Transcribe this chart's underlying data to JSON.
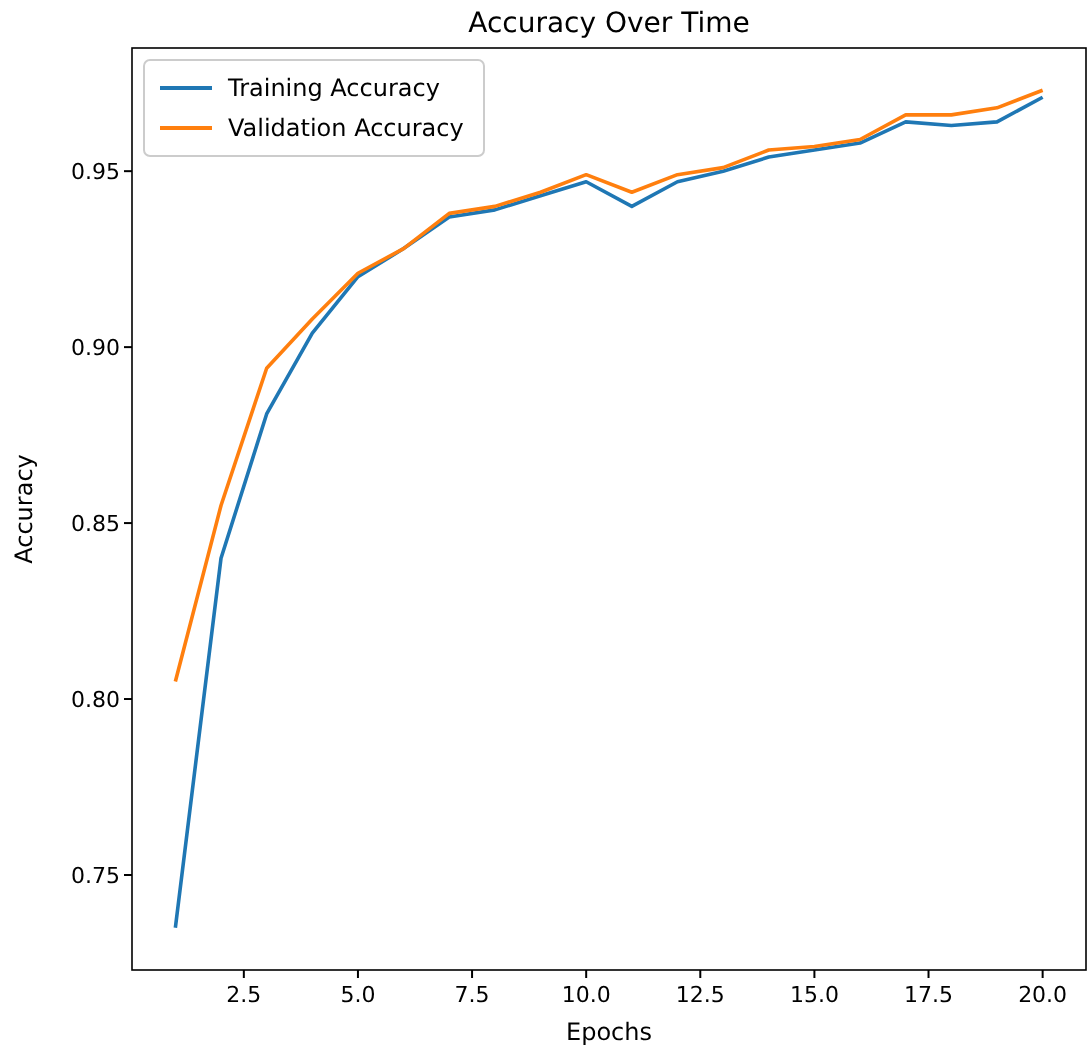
{
  "chart_data": {
    "type": "line",
    "title": "Accuracy Over Time",
    "xlabel": "Epochs",
    "ylabel": "Accuracy",
    "x": [
      1,
      2,
      3,
      4,
      5,
      6,
      7,
      8,
      9,
      10,
      11,
      12,
      13,
      14,
      15,
      16,
      17,
      18,
      19,
      20
    ],
    "series": [
      {
        "name": "Training Accuracy",
        "color": "#1f77b4",
        "values": [
          0.735,
          0.84,
          0.881,
          0.904,
          0.92,
          0.928,
          0.937,
          0.939,
          0.943,
          0.947,
          0.94,
          0.947,
          0.95,
          0.954,
          0.956,
          0.958,
          0.964,
          0.963,
          0.964,
          0.971
        ]
      },
      {
        "name": "Validation Accuracy",
        "color": "#ff7f0e",
        "values": [
          0.805,
          0.855,
          0.894,
          0.908,
          0.921,
          0.928,
          0.938,
          0.94,
          0.944,
          0.949,
          0.944,
          0.949,
          0.951,
          0.956,
          0.957,
          0.959,
          0.966,
          0.966,
          0.968,
          0.973
        ]
      }
    ],
    "xlim": [
      0.05,
      20.95
    ],
    "ylim": [
      0.723,
      0.985
    ],
    "xticks": [
      2.5,
      {
        "value": 5,
        "label": "5.0"
      },
      7.5,
      {
        "value": 10,
        "label": "10.0"
      },
      12.5,
      {
        "value": 15,
        "label": "15.0"
      },
      17.5,
      {
        "value": 20,
        "label": "20.0"
      }
    ],
    "yticks": [
      0.75,
      {
        "value": 0.8,
        "label": "0.80"
      },
      0.85,
      {
        "value": 0.9,
        "label": "0.90"
      },
      0.95
    ],
    "legend": "top left",
    "grid": false
  }
}
